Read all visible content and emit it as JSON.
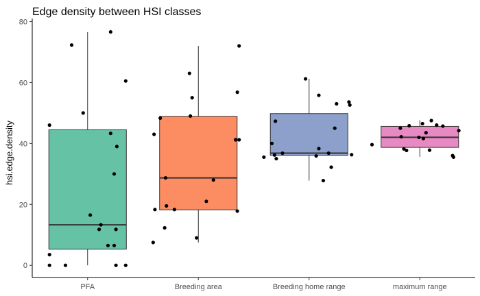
{
  "chart_data": {
    "type": "box",
    "title": "Edge density between HSI classes",
    "xlabel": "",
    "ylabel": "hsi.edge.density",
    "ylim": [
      -4,
      81
    ],
    "yticks": [
      0,
      20,
      40,
      60,
      80
    ],
    "grid": false,
    "categories": [
      "PFA",
      "Breeding area",
      "Breeding home range",
      "maximum range"
    ],
    "colors": [
      "#66c2a5",
      "#fc8d62",
      "#8da0cb",
      "#e78ac3"
    ],
    "boxes": [
      {
        "category": "PFA",
        "whisker_low": 0,
        "q1": 5.3,
        "median": 13.3,
        "q3": 44.5,
        "whisker_high": 76.5
      },
      {
        "category": "Breeding area",
        "whisker_low": 7.5,
        "q1": 18.2,
        "median": 28.7,
        "q3": 48.9,
        "whisker_high": 72
      },
      {
        "category": "Breeding home range",
        "whisker_low": 27.8,
        "q1": 36.1,
        "median": 36.8,
        "q3": 49.8,
        "whisker_high": 61.2
      },
      {
        "category": "maximum range",
        "whisker_low": 35.6,
        "q1": 38.7,
        "median": 42,
        "q3": 45.6,
        "whisker_high": 47.6
      }
    ],
    "points": [
      {
        "category": "PFA",
        "jitter": -0.18,
        "y": 72.3
      },
      {
        "category": "PFA",
        "jitter": 0.26,
        "y": 76.6
      },
      {
        "category": "PFA",
        "jitter": 0.43,
        "y": 60.5
      },
      {
        "category": "PFA",
        "jitter": -0.05,
        "y": 50
      },
      {
        "category": "PFA",
        "jitter": -0.43,
        "y": 46
      },
      {
        "category": "PFA",
        "jitter": 0.26,
        "y": 43.3
      },
      {
        "category": "PFA",
        "jitter": 0.33,
        "y": 39
      },
      {
        "category": "PFA",
        "jitter": 0.3,
        "y": 30
      },
      {
        "category": "PFA",
        "jitter": 0.03,
        "y": 16.5
      },
      {
        "category": "PFA",
        "jitter": 0.15,
        "y": 13.3
      },
      {
        "category": "PFA",
        "jitter": 0.13,
        "y": 11.8
      },
      {
        "category": "PFA",
        "jitter": 0.32,
        "y": 11.8
      },
      {
        "category": "PFA",
        "jitter": 0.23,
        "y": 6.5
      },
      {
        "category": "PFA",
        "jitter": 0.3,
        "y": 6.5
      },
      {
        "category": "PFA",
        "jitter": -0.43,
        "y": 3.5
      },
      {
        "category": "PFA",
        "jitter": -0.43,
        "y": 0
      },
      {
        "category": "PFA",
        "jitter": -0.25,
        "y": 0
      },
      {
        "category": "PFA",
        "jitter": 0.32,
        "y": 0
      },
      {
        "category": "PFA",
        "jitter": 0.43,
        "y": 0
      },
      {
        "category": "Breeding area",
        "jitter": 0.46,
        "y": 72
      },
      {
        "category": "Breeding area",
        "jitter": -0.1,
        "y": 63
      },
      {
        "category": "Breeding area",
        "jitter": 0.44,
        "y": 56.8
      },
      {
        "category": "Breeding area",
        "jitter": -0.07,
        "y": 55
      },
      {
        "category": "Breeding area",
        "jitter": -0.09,
        "y": 49
      },
      {
        "category": "Breeding area",
        "jitter": -0.43,
        "y": 48.3
      },
      {
        "category": "Breeding area",
        "jitter": -0.5,
        "y": 43
      },
      {
        "category": "Breeding area",
        "jitter": 0.42,
        "y": 41.2
      },
      {
        "category": "Breeding area",
        "jitter": 0.46,
        "y": 41.2
      },
      {
        "category": "Breeding area",
        "jitter": -0.37,
        "y": 28.7
      },
      {
        "category": "Breeding area",
        "jitter": 0.17,
        "y": 28
      },
      {
        "category": "Breeding area",
        "jitter": 0.09,
        "y": 21
      },
      {
        "category": "Breeding area",
        "jitter": -0.36,
        "y": 19.5
      },
      {
        "category": "Breeding area",
        "jitter": -0.27,
        "y": 18.3
      },
      {
        "category": "Breeding area",
        "jitter": -0.49,
        "y": 18.3
      },
      {
        "category": "Breeding area",
        "jitter": 0.44,
        "y": 17.8
      },
      {
        "category": "Breeding area",
        "jitter": -0.38,
        "y": 12.3
      },
      {
        "category": "Breeding area",
        "jitter": -0.02,
        "y": 9
      },
      {
        "category": "Breeding area",
        "jitter": -0.51,
        "y": 7.5
      },
      {
        "category": "Breeding home range",
        "jitter": -0.04,
        "y": 61.2
      },
      {
        "category": "Breeding home range",
        "jitter": 0.11,
        "y": 55.8
      },
      {
        "category": "Breeding home range",
        "jitter": 0.45,
        "y": 53.6
      },
      {
        "category": "Breeding home range",
        "jitter": 0.31,
        "y": 53
      },
      {
        "category": "Breeding home range",
        "jitter": 0.46,
        "y": 52.6
      },
      {
        "category": "Breeding home range",
        "jitter": -0.38,
        "y": 47.3
      },
      {
        "category": "Breeding home range",
        "jitter": 0.29,
        "y": 45
      },
      {
        "category": "Breeding home range",
        "jitter": -0.42,
        "y": 40
      },
      {
        "category": "Breeding home range",
        "jitter": 0.11,
        "y": 38.3
      },
      {
        "category": "Breeding home range",
        "jitter": 0.22,
        "y": 36.8
      },
      {
        "category": "Breeding home range",
        "jitter": -0.3,
        "y": 36.8
      },
      {
        "category": "Breeding home range",
        "jitter": 0.48,
        "y": 36.3
      },
      {
        "category": "Breeding home range",
        "jitter": -0.39,
        "y": 36.2
      },
      {
        "category": "Breeding home range",
        "jitter": 0.08,
        "y": 35.9
      },
      {
        "category": "Breeding home range",
        "jitter": -0.51,
        "y": 35.5
      },
      {
        "category": "Breeding home range",
        "jitter": -0.37,
        "y": 35
      },
      {
        "category": "Breeding home range",
        "jitter": 0.25,
        "y": 32.2
      },
      {
        "category": "Breeding home range",
        "jitter": 0.16,
        "y": 27.8
      },
      {
        "category": "maximum range",
        "jitter": 0.13,
        "y": 47.5
      },
      {
        "category": "maximum range",
        "jitter": 0.19,
        "y": 46
      },
      {
        "category": "maximum range",
        "jitter": 0.03,
        "y": 46.5
      },
      {
        "category": "maximum range",
        "jitter": -0.12,
        "y": 45.8
      },
      {
        "category": "maximum range",
        "jitter": -0.22,
        "y": 45
      },
      {
        "category": "maximum range",
        "jitter": 0.26,
        "y": 45.7
      },
      {
        "category": "maximum range",
        "jitter": 0.44,
        "y": 44.2
      },
      {
        "category": "maximum range",
        "jitter": 0.07,
        "y": 43.5
      },
      {
        "category": "maximum range",
        "jitter": -0.21,
        "y": 42.2
      },
      {
        "category": "maximum range",
        "jitter": -0.01,
        "y": 42
      },
      {
        "category": "maximum range",
        "jitter": 0.04,
        "y": 41.6
      },
      {
        "category": "maximum range",
        "jitter": -0.54,
        "y": 39.6
      },
      {
        "category": "maximum range",
        "jitter": -0.18,
        "y": 38.2
      },
      {
        "category": "maximum range",
        "jitter": -0.15,
        "y": 37.7
      },
      {
        "category": "maximum range",
        "jitter": 0.11,
        "y": 37.8
      },
      {
        "category": "maximum range",
        "jitter": 0.37,
        "y": 36
      },
      {
        "category": "maximum range",
        "jitter": 0.38,
        "y": 35.5
      }
    ]
  }
}
